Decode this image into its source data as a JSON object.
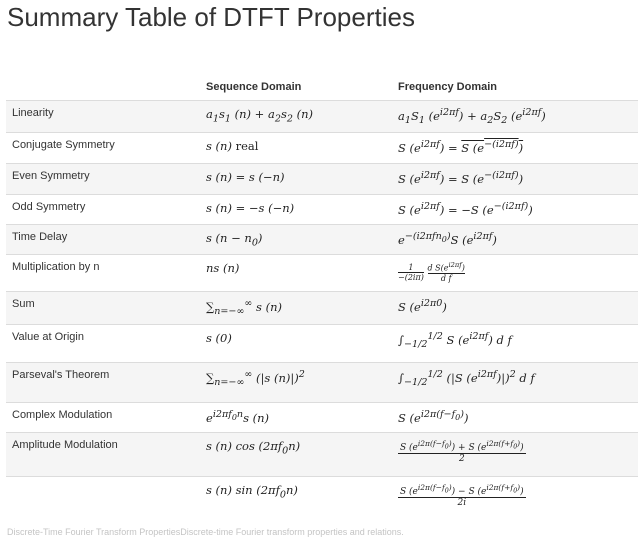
{
  "title": "Summary Table of DTFT Properties",
  "table": {
    "headers": [
      "",
      "Sequence Domain",
      "Frequency Domain"
    ],
    "rows": [
      {
        "name": "Linearity",
        "seq": "a₁s₁ (n) + a₂s₂ (n)",
        "freq": "a₁S₁ (e^{i2πf}) + a₂S₂ (e^{i2πf})"
      },
      {
        "name": "Conjugate Symmetry",
        "seq": "s (n) real",
        "freq": "S (e^{i2πf}) = S̅(e^{−(i2πf)})"
      },
      {
        "name": "Even Symmetry",
        "seq": "s (n) = s (−n)",
        "freq": "S (e^{i2πf}) = S (e^{−(i2πf)})"
      },
      {
        "name": "Odd Symmetry",
        "seq": "s (n) = −s (−n)",
        "freq": "S (e^{i2πf}) = −S (e^{−(i2πf)})"
      },
      {
        "name": "Time Delay",
        "seq": "s (n − n₀)",
        "freq": "e^{−(i2πfn₀)} S (e^{i2πf})"
      },
      {
        "name": "Multiplication by n",
        "seq": "ns (n)",
        "freq": "1/(−(2iπ)) · dS(e^{i2πf})/df"
      },
      {
        "name": "Sum",
        "seq": "∑_{n=−∞}^{∞} s (n)",
        "freq": "S (e^{i2π0})"
      },
      {
        "name": "Value at Origin",
        "seq": "s (0)",
        "freq": "∫_{−1/2}^{1/2} S (e^{i2πf}) df"
      },
      {
        "name": "Parseval's Theorem",
        "seq": "∑_{n=−∞}^{∞} (|s (n)|)²",
        "freq": "∫_{−1/2}^{1/2} (|S (e^{i2πf})|)² df"
      },
      {
        "name": "Complex Modulation",
        "seq": "e^{i2πf₀n} s (n)",
        "freq": "S (e^{i2π(f−f₀)})"
      },
      {
        "name": "Amplitude Modulation",
        "seq": "s (n) cos (2πf₀n)",
        "freq": "[S (e^{i2π(f−f₀)}) + S (e^{i2π(f+f₀)})] / 2"
      },
      {
        "name": "",
        "seq": "s (n) sin (2πf₀n)",
        "freq": "[S (e^{i2π(f−f₀)}) − S (e^{i2π(f+f₀)})] / 2i"
      }
    ]
  },
  "caption": "Discrete-Time Fourier Transform PropertiesDiscrete-time Fourier transform properties and relations."
}
